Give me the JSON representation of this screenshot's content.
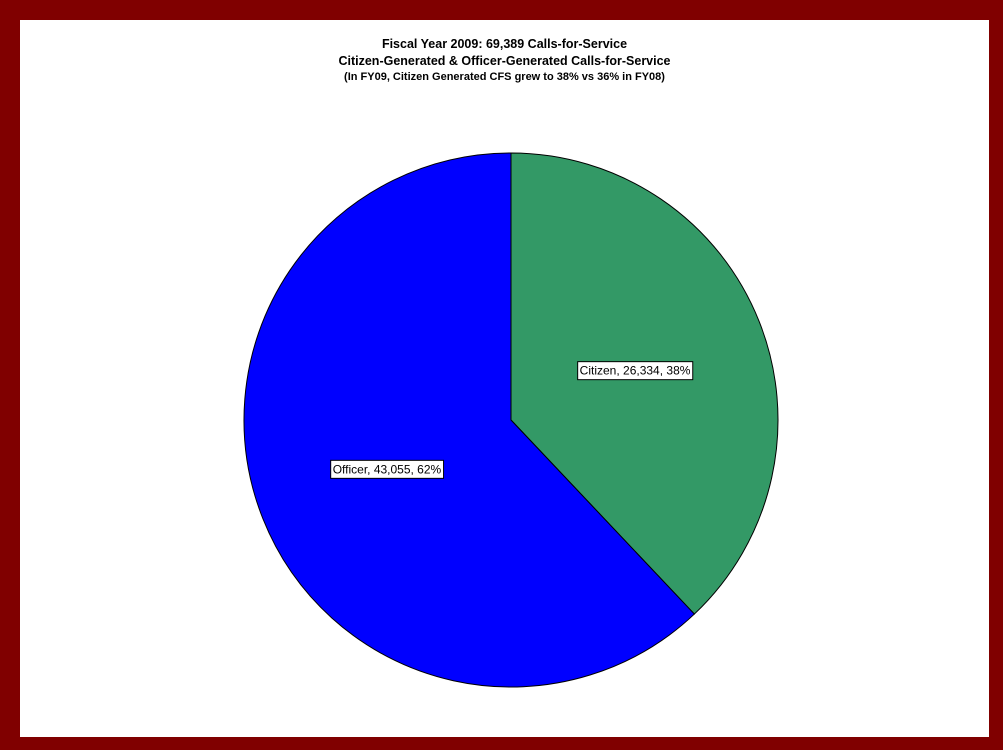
{
  "chart_data": {
    "type": "pie",
    "title": "Fiscal Year 2009: 69,389 Calls-for-Service",
    "subtitle": "Citizen-Generated & Officer-Generated Calls-for-Service",
    "note": "(In FY09, Citizen Generated CFS grew to 38% vs 36% in FY08)",
    "slices": [
      {
        "name": "Citizen",
        "value": 26334,
        "percent": 38,
        "label": "Citizen, 26,334, 38%",
        "color": "#339966"
      },
      {
        "name": "Officer",
        "value": 43055,
        "percent": 62,
        "label": "Officer, 43,055, 62%",
        "color": "#0000FF"
      }
    ],
    "start": "12 o'clock",
    "direction": "clockwise",
    "legend": "none"
  },
  "colors": {
    "frame": "#800000",
    "background": "#FFFFFF"
  }
}
